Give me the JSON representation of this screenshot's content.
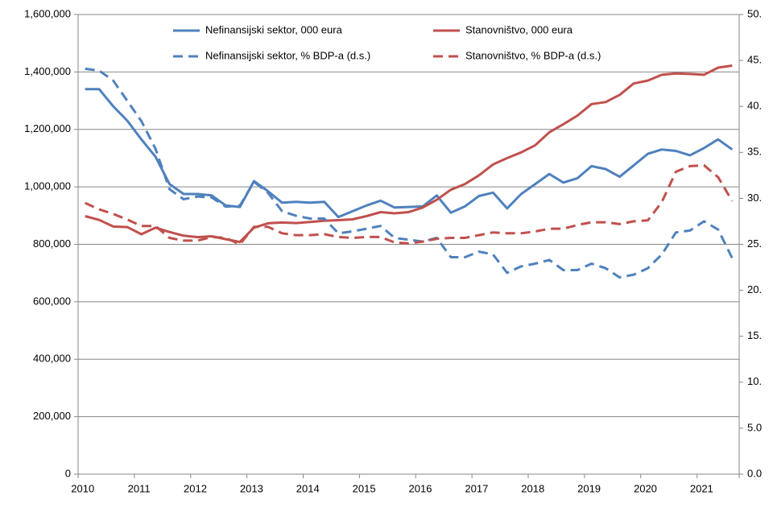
{
  "chart_data": {
    "type": "line",
    "categories": [
      "2010",
      null,
      null,
      null,
      "2011",
      null,
      null,
      null,
      "2012",
      null,
      null,
      null,
      "2013",
      null,
      null,
      null,
      "2014",
      null,
      null,
      null,
      "2015",
      null,
      null,
      null,
      "2016",
      null,
      null,
      null,
      "2017",
      null,
      null,
      null,
      "2018",
      null,
      null,
      null,
      "2019",
      null,
      null,
      null,
      "2020",
      null,
      null,
      null,
      "2021",
      null,
      null
    ],
    "series": [
      {
        "name": "Nefinansijski sektor, 000 eura",
        "color": "#4f81bd",
        "dashed": false,
        "values": [
          1340000,
          1340000,
          1280000,
          1230000,
          1165000,
          1105000,
          1010000,
          975000,
          975000,
          970000,
          935000,
          930000,
          1020000,
          985000,
          945000,
          948000,
          945000,
          948000,
          895000,
          915000,
          935000,
          952000,
          928000,
          930000,
          932000,
          970000,
          910000,
          932000,
          968000,
          980000,
          925000,
          975000,
          1010000,
          1045000,
          1015000,
          1030000,
          1072000,
          1062000,
          1035000,
          1075000,
          1115000,
          1130000,
          1125000,
          1110000,
          1135000,
          1165000,
          1130000
        ]
      },
      {
        "name": "Stanovništvo, 000 eura",
        "color": "#c0504d",
        "dashed": false,
        "values": [
          898000,
          885000,
          862000,
          860000,
          835000,
          858000,
          843000,
          830000,
          825000,
          828000,
          818000,
          808000,
          858000,
          873000,
          876000,
          874000,
          878000,
          882000,
          884000,
          887000,
          898000,
          912000,
          908000,
          912000,
          928000,
          955000,
          990000,
          1010000,
          1040000,
          1078000,
          1100000,
          1120000,
          1145000,
          1190000,
          1218000,
          1248000,
          1288000,
          1295000,
          1320000,
          1360000,
          1370000,
          1390000,
          1395000,
          1393000,
          1390000,
          1415000,
          1422000
        ]
      },
      {
        "name": "Nefinansijski sektor, % BDP-a (d.s.)",
        "color": "#4f81bd",
        "dashed": true,
        "axis": "y2",
        "values": [
          44.1,
          43.9,
          42.8,
          40.6,
          38.4,
          35.4,
          31.0,
          29.9,
          30.2,
          30.1,
          29.1,
          29.2,
          31.8,
          30.6,
          28.6,
          28.1,
          27.8,
          27.8,
          26.2,
          26.4,
          26.7,
          27.0,
          25.7,
          25.5,
          25.3,
          25.7,
          23.6,
          23.6,
          24.2,
          23.9,
          21.9,
          22.6,
          22.9,
          23.3,
          22.2,
          22.2,
          22.9,
          22.4,
          21.4,
          21.7,
          22.4,
          23.9,
          26.3,
          26.5,
          27.5,
          26.6,
          23.5
        ]
      },
      {
        "name": "Stanovništvo, % BDP-a (d.s.)",
        "color": "#c0504d",
        "dashed": true,
        "axis": "y2",
        "values": [
          29.5,
          28.8,
          28.3,
          27.7,
          27.0,
          27.0,
          25.7,
          25.4,
          25.4,
          25.8,
          25.7,
          25.0,
          26.9,
          26.9,
          26.2,
          26.0,
          26.0,
          26.1,
          25.8,
          25.7,
          25.8,
          25.8,
          25.2,
          25.1,
          25.3,
          25.6,
          25.7,
          25.7,
          26.0,
          26.3,
          26.2,
          26.2,
          26.4,
          26.7,
          26.7,
          27.1,
          27.4,
          27.4,
          27.2,
          27.5,
          27.6,
          29.6,
          32.9,
          33.5,
          33.6,
          32.3,
          29.7
        ]
      }
    ],
    "ylim": [
      0,
      1600000
    ],
    "yticks": [
      0,
      {
        "value": 200000,
        "label": "200,000"
      },
      {
        "value": 400000,
        "label": "400,000"
      },
      {
        "value": 600000,
        "label": "600,000"
      },
      {
        "value": 800000,
        "label": "800,000"
      },
      {
        "value": 1000000,
        "label": "1,000,000"
      },
      {
        "value": 1200000,
        "label": "1,200,000"
      },
      {
        "value": 1400000,
        "label": "1,400,000"
      },
      {
        "value": 1600000,
        "label": "1,600,000"
      }
    ],
    "y2lim": [
      0,
      50
    ],
    "y2ticks": [
      {
        "value": 0,
        "label": "0.0"
      },
      {
        "value": 5,
        "label": "5.0"
      },
      {
        "value": 10,
        "label": "10."
      },
      {
        "value": 15,
        "label": "15."
      },
      {
        "value": 20,
        "label": "20."
      },
      {
        "value": 25,
        "label": "25."
      },
      {
        "value": 30,
        "label": "30."
      },
      {
        "value": 35,
        "label": "35."
      },
      {
        "value": 40,
        "label": "40."
      },
      {
        "value": 45,
        "label": "45."
      },
      {
        "value": 50,
        "label": "50."
      }
    ],
    "grid": true
  }
}
